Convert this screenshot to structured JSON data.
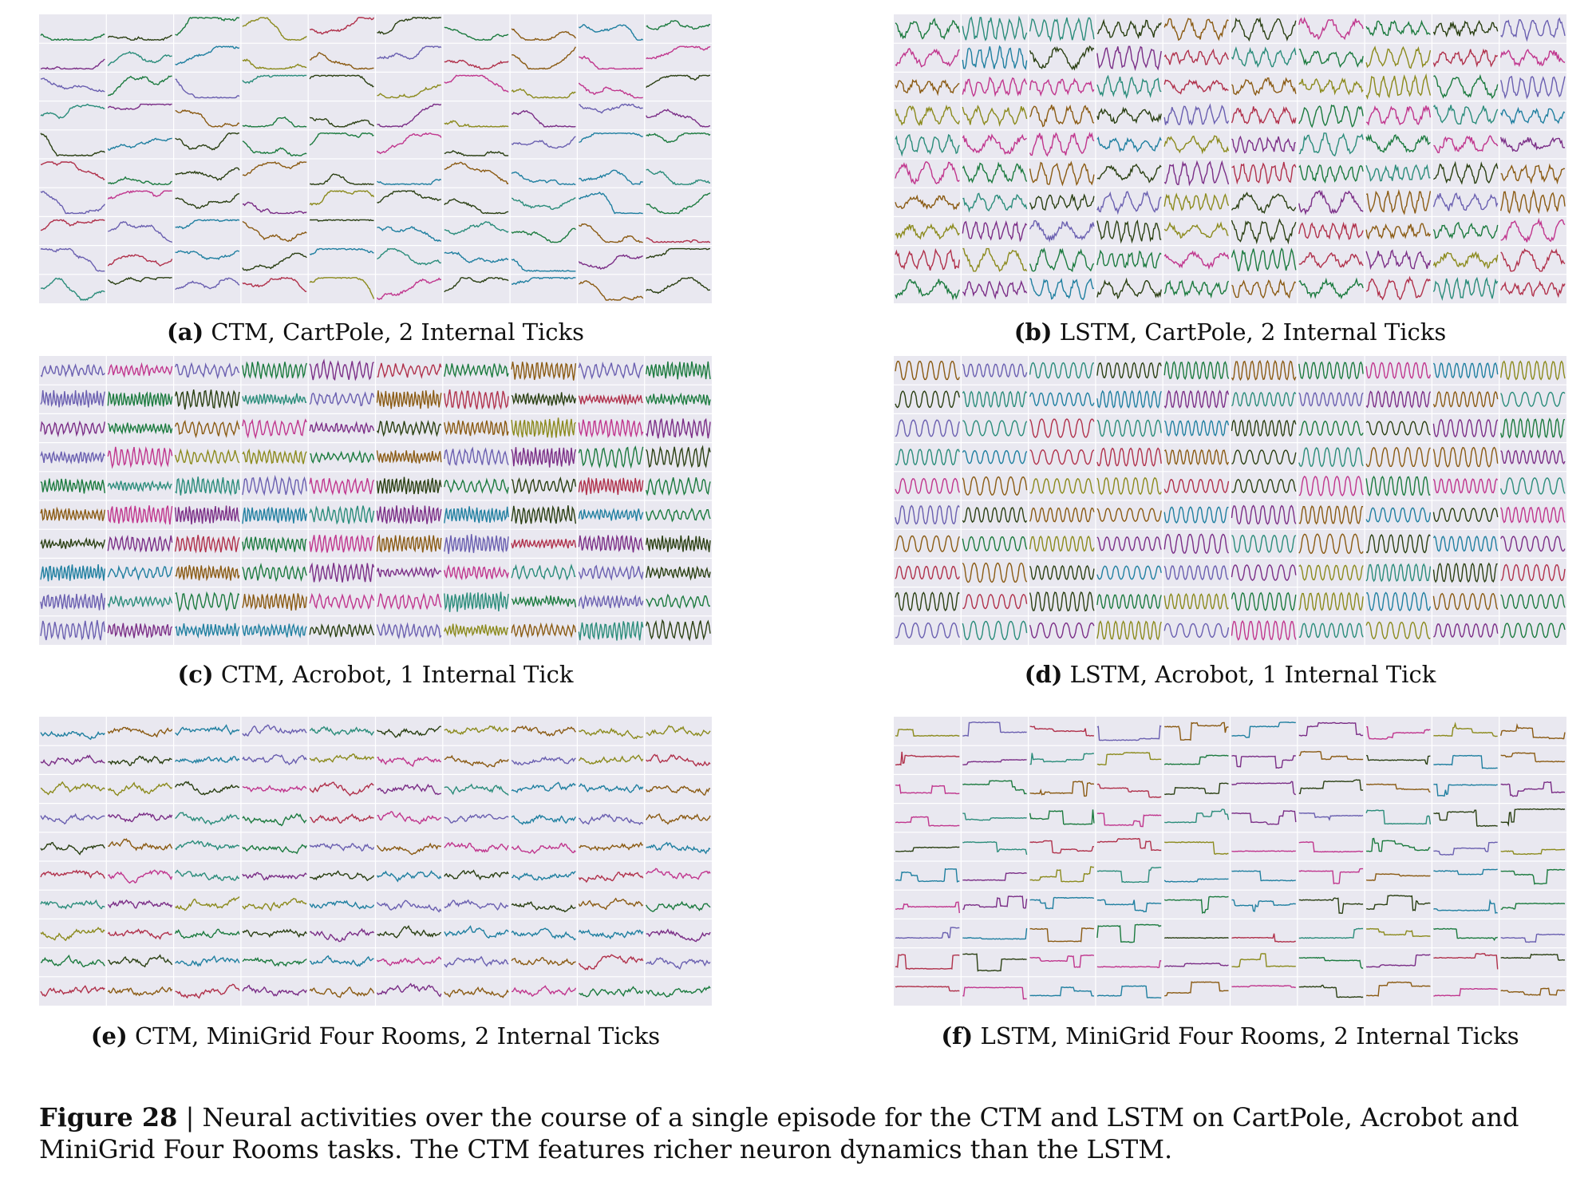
{
  "panels": [
    {
      "id": "a",
      "label": "(a)",
      "text": "CTM, CartPole, 2 Internal Ticks",
      "style": "smooth",
      "seed": 11
    },
    {
      "id": "b",
      "label": "(b)",
      "text": "LSTM, CartPole, 2 Internal Ticks",
      "style": "wavy",
      "seed": 23
    },
    {
      "id": "c",
      "label": "(c)",
      "text": "CTM, Acrobot, 1 Internal Tick",
      "style": "osc",
      "seed": 37
    },
    {
      "id": "d",
      "label": "(d)",
      "text": "LSTM, Acrobot, 1 Internal Tick",
      "style": "regular",
      "seed": 41
    },
    {
      "id": "e",
      "label": "(e)",
      "text": "CTM, MiniGrid Four Rooms, 2 Internal Ticks",
      "style": "noisy",
      "seed": 53
    },
    {
      "id": "f",
      "label": "(f)",
      "text": "LSTM, MiniGrid Four Rooms, 2 Internal Ticks",
      "style": "step",
      "seed": 67
    }
  ],
  "grid": {
    "rows": 10,
    "cols": 10
  },
  "colors": [
    "#1b7a3e",
    "#8a5a12",
    "#6a5fb0",
    "#c0358d",
    "#1f7fa0",
    "#8b8a1c",
    "#2a3f12",
    "#b0304a",
    "#2a8c7a",
    "#7a2d86"
  ],
  "figure_caption": {
    "label": "Figure 28",
    "text": " | Neural activities over the course of a single episode for the CTM and LSTM on CartPole, Acrobot and MiniGrid Four Rooms tasks. The CTM features richer neuron dynamics than the LSTM."
  }
}
